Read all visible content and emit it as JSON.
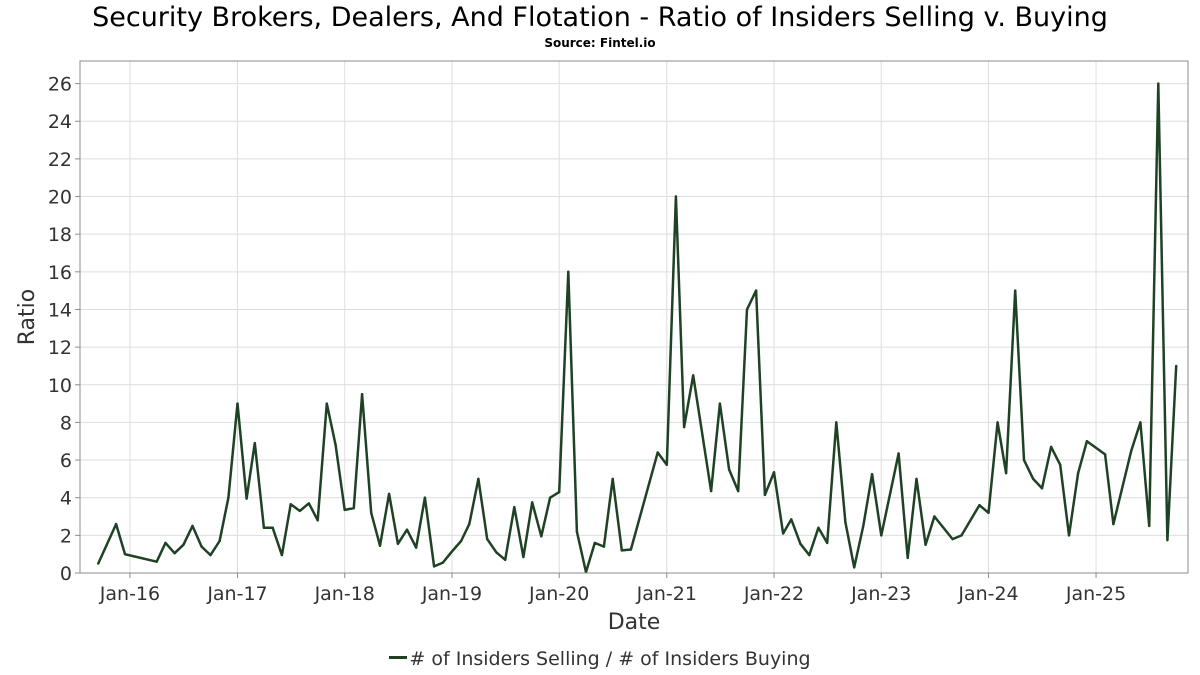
{
  "chart_data": {
    "type": "line",
    "title": "Security Brokers, Dealers, And Flotation - Ratio of Insiders Selling v. Buying",
    "subtitle": "Source: Fintel.io",
    "xlabel": "Date",
    "ylabel": "Ratio",
    "ylim": [
      0,
      27.2
    ],
    "yticks": [
      0,
      2,
      4,
      6,
      8,
      10,
      12,
      14,
      16,
      18,
      20,
      22,
      24,
      26
    ],
    "xticks": [
      "2016-01-01",
      "2017-01-01",
      "2018-01-01",
      "2019-01-01",
      "2020-01-01",
      "2021-01-01",
      "2022-01-01",
      "2023-01-01",
      "2024-01-01",
      "2025-01-01"
    ],
    "xtick_labels": [
      "Jan-16",
      "Jan-17",
      "Jan-18",
      "Jan-19",
      "Jan-20",
      "Jan-21",
      "Jan-22",
      "Jan-23",
      "Jan-24",
      "Jan-25"
    ],
    "xlim": [
      "2015-07-15",
      "2025-11-10"
    ],
    "grid": true,
    "legend_position": "bottom-center",
    "series": [
      {
        "name": "# of Insiders Selling / # of Insiders Buying",
        "color": "#1f4225",
        "points": [
          [
            "2015-09-15",
            0.5
          ],
          [
            "2015-11-15",
            2.6
          ],
          [
            "2015-12-15",
            1.0
          ],
          [
            "2016-04-01",
            0.6
          ],
          [
            "2016-05-01",
            1.6
          ],
          [
            "2016-06-01",
            1.05
          ],
          [
            "2016-07-01",
            1.5
          ],
          [
            "2016-08-01",
            2.5
          ],
          [
            "2016-09-01",
            1.4
          ],
          [
            "2016-10-01",
            0.95
          ],
          [
            "2016-11-01",
            1.7
          ],
          [
            "2016-12-01",
            4.0
          ],
          [
            "2017-01-01",
            9.0
          ],
          [
            "2017-02-01",
            3.95
          ],
          [
            "2017-03-01",
            6.9
          ],
          [
            "2017-04-01",
            2.4
          ],
          [
            "2017-05-01",
            2.4
          ],
          [
            "2017-06-01",
            0.95
          ],
          [
            "2017-07-01",
            3.65
          ],
          [
            "2017-08-01",
            3.3
          ],
          [
            "2017-09-01",
            3.7
          ],
          [
            "2017-10-01",
            2.8
          ],
          [
            "2017-11-01",
            9.0
          ],
          [
            "2017-12-01",
            6.8
          ],
          [
            "2018-01-01",
            3.35
          ],
          [
            "2018-02-01",
            3.45
          ],
          [
            "2018-03-01",
            9.5
          ],
          [
            "2018-04-01",
            3.2
          ],
          [
            "2018-05-01",
            1.45
          ],
          [
            "2018-06-01",
            4.2
          ],
          [
            "2018-07-01",
            1.55
          ],
          [
            "2018-08-01",
            2.3
          ],
          [
            "2018-09-01",
            1.35
          ],
          [
            "2018-10-01",
            4.0
          ],
          [
            "2018-11-01",
            0.35
          ],
          [
            "2018-12-01",
            0.55
          ],
          [
            "2019-01-01",
            1.15
          ],
          [
            "2019-02-01",
            1.7
          ],
          [
            "2019-03-01",
            2.6
          ],
          [
            "2019-04-01",
            5.0
          ],
          [
            "2019-05-01",
            1.8
          ],
          [
            "2019-06-01",
            1.1
          ],
          [
            "2019-07-01",
            0.7
          ],
          [
            "2019-08-01",
            3.5
          ],
          [
            "2019-09-01",
            0.85
          ],
          [
            "2019-10-01",
            3.75
          ],
          [
            "2019-11-01",
            1.95
          ],
          [
            "2019-12-01",
            4.0
          ],
          [
            "2020-01-01",
            4.3
          ],
          [
            "2020-02-01",
            16.0
          ],
          [
            "2020-03-01",
            2.2
          ],
          [
            "2020-04-01",
            0.05
          ],
          [
            "2020-05-01",
            1.6
          ],
          [
            "2020-06-01",
            1.4
          ],
          [
            "2020-07-01",
            5.0
          ],
          [
            "2020-08-01",
            1.2
          ],
          [
            "2020-09-01",
            1.25
          ],
          [
            "2020-12-01",
            6.4
          ],
          [
            "2021-01-01",
            5.75
          ],
          [
            "2021-02-01",
            20.0
          ],
          [
            "2021-03-01",
            7.75
          ],
          [
            "2021-04-01",
            10.5
          ],
          [
            "2021-06-01",
            4.35
          ],
          [
            "2021-07-01",
            9.0
          ],
          [
            "2021-08-01",
            5.5
          ],
          [
            "2021-09-01",
            4.35
          ],
          [
            "2021-10-01",
            14.0
          ],
          [
            "2021-11-01",
            15.0
          ],
          [
            "2021-12-01",
            4.15
          ],
          [
            "2022-01-01",
            5.35
          ],
          [
            "2022-02-01",
            2.1
          ],
          [
            "2022-03-01",
            2.85
          ],
          [
            "2022-04-01",
            1.55
          ],
          [
            "2022-05-01",
            0.95
          ],
          [
            "2022-06-01",
            2.4
          ],
          [
            "2022-07-01",
            1.6
          ],
          [
            "2022-08-01",
            8.0
          ],
          [
            "2022-09-01",
            2.7
          ],
          [
            "2022-10-01",
            0.3
          ],
          [
            "2022-11-01",
            2.5
          ],
          [
            "2022-12-01",
            5.25
          ],
          [
            "2023-01-01",
            2.0
          ],
          [
            "2023-03-01",
            6.35
          ],
          [
            "2023-04-01",
            0.8
          ],
          [
            "2023-05-01",
            5.0
          ],
          [
            "2023-06-01",
            1.5
          ],
          [
            "2023-07-01",
            3.0
          ],
          [
            "2023-09-01",
            1.8
          ],
          [
            "2023-10-01",
            2.0
          ],
          [
            "2023-12-01",
            3.6
          ],
          [
            "2024-01-01",
            3.2
          ],
          [
            "2024-02-01",
            8.0
          ],
          [
            "2024-03-01",
            5.3
          ],
          [
            "2024-04-01",
            15.0
          ],
          [
            "2024-05-01",
            6.0
          ],
          [
            "2024-06-01",
            5.0
          ],
          [
            "2024-07-01",
            4.5
          ],
          [
            "2024-08-01",
            6.7
          ],
          [
            "2024-09-01",
            5.75
          ],
          [
            "2024-10-01",
            2.0
          ],
          [
            "2024-11-01",
            5.3
          ],
          [
            "2024-12-01",
            7.0
          ],
          [
            "2025-02-01",
            6.3
          ],
          [
            "2025-03-01",
            2.6
          ],
          [
            "2025-05-01",
            6.5
          ],
          [
            "2025-06-01",
            8.0
          ],
          [
            "2025-07-01",
            2.5
          ],
          [
            "2025-08-01",
            26.0
          ],
          [
            "2025-09-01",
            1.75
          ],
          [
            "2025-10-01",
            11.0
          ]
        ]
      }
    ]
  }
}
